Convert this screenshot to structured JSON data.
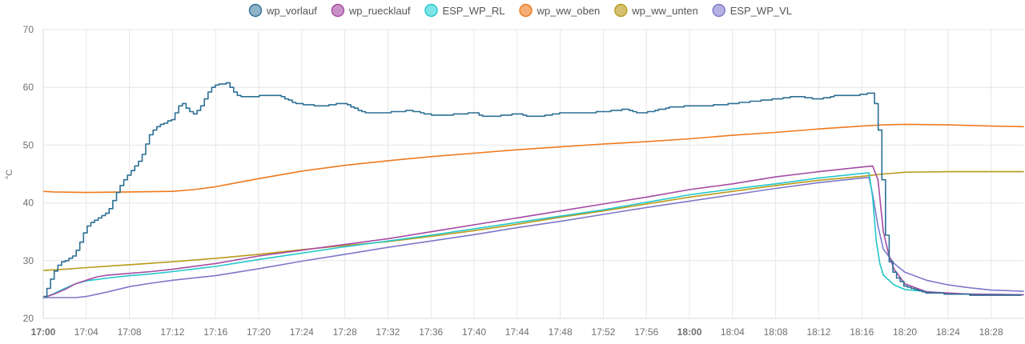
{
  "chart_data": {
    "type": "line",
    "title": "",
    "xlabel": "",
    "ylabel": "°C",
    "ylim": [
      20,
      70
    ],
    "xlim": [
      "17:00",
      "18:31"
    ],
    "grid": true,
    "legend_position": "top-center",
    "yticks": [
      20,
      30,
      40,
      50,
      60,
      70
    ],
    "xticks": [
      {
        "time": "17:00",
        "label": "17:00",
        "bold": true
      },
      {
        "time": "17:04",
        "label": "17:04",
        "bold": false
      },
      {
        "time": "17:08",
        "label": "17:08",
        "bold": false
      },
      {
        "time": "17:12",
        "label": "17:12",
        "bold": false
      },
      {
        "time": "17:16",
        "label": "17:16",
        "bold": false
      },
      {
        "time": "17:20",
        "label": "17:20",
        "bold": false
      },
      {
        "time": "17:24",
        "label": "17:24",
        "bold": false
      },
      {
        "time": "17:28",
        "label": "17:28",
        "bold": false
      },
      {
        "time": "17:32",
        "label": "17:32",
        "bold": false
      },
      {
        "time": "17:36",
        "label": "17:36",
        "bold": false
      },
      {
        "time": "17:40",
        "label": "17:40",
        "bold": false
      },
      {
        "time": "17:44",
        "label": "17:44",
        "bold": false
      },
      {
        "time": "17:48",
        "label": "17:48",
        "bold": false
      },
      {
        "time": "17:52",
        "label": "17:52",
        "bold": false
      },
      {
        "time": "17:56",
        "label": "17:56",
        "bold": false
      },
      {
        "time": "18:00",
        "label": "18:00",
        "bold": true
      },
      {
        "time": "18:04",
        "label": "18:04",
        "bold": false
      },
      {
        "time": "18:08",
        "label": "18:08",
        "bold": false
      },
      {
        "time": "18:12",
        "label": "18:12",
        "bold": false
      },
      {
        "time": "18:16",
        "label": "18:16",
        "bold": false
      },
      {
        "time": "18:20",
        "label": "18:20",
        "bold": false
      },
      {
        "time": "18:24",
        "label": "18:24",
        "bold": false
      },
      {
        "time": "18:28",
        "label": "18:28",
        "bold": false
      }
    ],
    "series": [
      {
        "name": "wp_vorlauf",
        "color": "#2b6f94",
        "fill": "#8fb3c9",
        "step": true,
        "points": [
          [
            "17:00",
            23.8
          ],
          [
            "17:00:30",
            26.0
          ],
          [
            "17:01",
            28.2
          ],
          [
            "17:01:30",
            29.5
          ],
          [
            "17:02",
            30.0
          ],
          [
            "17:02:30",
            30.4
          ],
          [
            "17:03",
            31.5
          ],
          [
            "17:03:30",
            33.6
          ],
          [
            "17:04",
            36.0
          ],
          [
            "17:05",
            37.2
          ],
          [
            "17:06",
            38.5
          ],
          [
            "17:06:30",
            40.5
          ],
          [
            "17:07",
            42.6
          ],
          [
            "17:07:30",
            44.0
          ],
          [
            "17:08",
            45.2
          ],
          [
            "17:09",
            47.5
          ],
          [
            "17:09:30",
            50.2
          ],
          [
            "17:10",
            52.4
          ],
          [
            "17:11",
            53.7
          ],
          [
            "17:12",
            54.5
          ],
          [
            "17:12:30",
            56.8
          ],
          [
            "17:13",
            57.2
          ],
          [
            "17:13:30",
            55.8
          ],
          [
            "17:14",
            55.3
          ],
          [
            "17:14:30",
            56.4
          ],
          [
            "17:15",
            58.2
          ],
          [
            "17:15:30",
            59.8
          ],
          [
            "17:16",
            60.4
          ],
          [
            "17:17",
            60.8
          ],
          [
            "17:17:30",
            59.5
          ],
          [
            "17:18",
            58.6
          ],
          [
            "17:19",
            58.3
          ],
          [
            "17:20",
            58.5
          ],
          [
            "17:21",
            58.6
          ],
          [
            "17:22",
            58.5
          ],
          [
            "17:23",
            57.5
          ],
          [
            "17:24",
            57.0
          ],
          [
            "17:26",
            56.8
          ],
          [
            "17:28",
            57.3
          ],
          [
            "17:29",
            56.2
          ],
          [
            "17:30",
            55.6
          ],
          [
            "17:32",
            55.7
          ],
          [
            "17:34",
            56.0
          ],
          [
            "17:36",
            55.2
          ],
          [
            "17:38",
            55.3
          ],
          [
            "17:40",
            55.6
          ],
          [
            "17:41",
            54.9
          ],
          [
            "17:42",
            55.0
          ],
          [
            "17:44",
            55.5
          ],
          [
            "17:45",
            54.9
          ],
          [
            "17:46",
            55.0
          ],
          [
            "17:48",
            55.6
          ],
          [
            "17:50",
            55.5
          ],
          [
            "17:52",
            55.8
          ],
          [
            "17:54",
            56.2
          ],
          [
            "17:55",
            55.6
          ],
          [
            "17:56",
            55.7
          ],
          [
            "17:58",
            56.5
          ],
          [
            "18:00",
            56.8
          ],
          [
            "18:02",
            56.9
          ],
          [
            "18:04",
            57.2
          ],
          [
            "18:06",
            57.6
          ],
          [
            "18:08",
            58.0
          ],
          [
            "18:10",
            58.5
          ],
          [
            "18:12",
            57.9
          ],
          [
            "18:13",
            58.4
          ],
          [
            "18:14",
            58.7
          ],
          [
            "18:15",
            58.5
          ],
          [
            "18:16",
            58.8
          ],
          [
            "18:17",
            59.1
          ],
          [
            "18:17:15",
            56.5
          ],
          [
            "18:17:30",
            53.0
          ],
          [
            "18:17:45",
            47.0
          ],
          [
            "18:18",
            40.0
          ],
          [
            "18:18:15",
            33.0
          ],
          [
            "18:18:30",
            30.0
          ],
          [
            "18:19",
            27.5
          ],
          [
            "18:20",
            25.5
          ],
          [
            "18:22",
            24.4
          ],
          [
            "18:26",
            24.1
          ],
          [
            "18:31",
            24.0
          ]
        ]
      },
      {
        "name": "wp_ruecklauf",
        "color": "#a54aa3",
        "fill": "#c991c8",
        "step": false,
        "points": [
          [
            "17:00",
            23.6
          ],
          [
            "17:01",
            24.2
          ],
          [
            "17:02",
            25.0
          ],
          [
            "17:03",
            26.0
          ],
          [
            "17:04",
            26.6
          ],
          [
            "17:05",
            27.2
          ],
          [
            "17:06",
            27.5
          ],
          [
            "17:08",
            27.8
          ],
          [
            "17:10",
            28.1
          ],
          [
            "17:12",
            28.5
          ],
          [
            "17:16",
            29.5
          ],
          [
            "17:20",
            30.8
          ],
          [
            "17:24",
            31.8
          ],
          [
            "17:28",
            32.8
          ],
          [
            "17:32",
            33.8
          ],
          [
            "17:36",
            35.0
          ],
          [
            "17:40",
            36.2
          ],
          [
            "17:44",
            37.4
          ],
          [
            "17:48",
            38.6
          ],
          [
            "17:52",
            39.8
          ],
          [
            "17:56",
            41.0
          ],
          [
            "18:00",
            42.3
          ],
          [
            "18:04",
            43.3
          ],
          [
            "18:08",
            44.5
          ],
          [
            "18:12",
            45.4
          ],
          [
            "18:16",
            46.2
          ],
          [
            "18:17",
            46.4
          ],
          [
            "18:17:30",
            44.0
          ],
          [
            "18:18",
            35.0
          ],
          [
            "18:18:30",
            31.0
          ],
          [
            "18:19",
            28.5
          ],
          [
            "18:20",
            26.0
          ],
          [
            "18:22",
            24.6
          ],
          [
            "18:26",
            24.2
          ],
          [
            "18:31",
            24.1
          ]
        ]
      },
      {
        "name": "ESP_WP_RL",
        "color": "#23c7cc",
        "fill": "#7ee4e6",
        "step": false,
        "points": [
          [
            "17:00",
            23.5
          ],
          [
            "17:01",
            24.3
          ],
          [
            "17:02",
            25.2
          ],
          [
            "17:03",
            26.0
          ],
          [
            "17:04",
            26.5
          ],
          [
            "17:06",
            27.0
          ],
          [
            "17:08",
            27.4
          ],
          [
            "17:10",
            27.7
          ],
          [
            "17:12",
            28.1
          ],
          [
            "17:16",
            29.0
          ],
          [
            "17:20",
            30.2
          ],
          [
            "17:24",
            31.3
          ],
          [
            "17:28",
            32.4
          ],
          [
            "17:32",
            33.4
          ],
          [
            "17:36",
            34.4
          ],
          [
            "17:40",
            35.5
          ],
          [
            "17:44",
            36.6
          ],
          [
            "17:48",
            37.7
          ],
          [
            "17:52",
            38.8
          ],
          [
            "17:56",
            40.1
          ],
          [
            "18:00",
            41.4
          ],
          [
            "18:04",
            42.4
          ],
          [
            "18:08",
            43.3
          ],
          [
            "18:12",
            44.3
          ],
          [
            "18:16",
            45.1
          ],
          [
            "18:16:40",
            45.2
          ],
          [
            "18:17",
            41.0
          ],
          [
            "18:17:20",
            33.5
          ],
          [
            "18:17:40",
            29.5
          ],
          [
            "18:18",
            27.5
          ],
          [
            "18:19",
            25.8
          ],
          [
            "18:20",
            25.0
          ],
          [
            "18:24",
            24.3
          ],
          [
            "18:31",
            24.1
          ]
        ]
      },
      {
        "name": "wp_ww_oben",
        "color": "#ef7a1e",
        "fill": "#f5ad77",
        "step": false,
        "points": [
          [
            "17:00",
            42.0
          ],
          [
            "17:01",
            41.9
          ],
          [
            "17:04",
            41.8
          ],
          [
            "17:08",
            41.9
          ],
          [
            "17:12",
            42.0
          ],
          [
            "17:14",
            42.3
          ],
          [
            "17:16",
            42.8
          ],
          [
            "17:18",
            43.5
          ],
          [
            "17:20",
            44.2
          ],
          [
            "17:24",
            45.5
          ],
          [
            "17:28",
            46.5
          ],
          [
            "17:32",
            47.3
          ],
          [
            "17:36",
            48.0
          ],
          [
            "17:40",
            48.6
          ],
          [
            "17:44",
            49.2
          ],
          [
            "17:48",
            49.7
          ],
          [
            "17:52",
            50.2
          ],
          [
            "17:56",
            50.6
          ],
          [
            "18:00",
            51.1
          ],
          [
            "18:04",
            51.7
          ],
          [
            "18:08",
            52.2
          ],
          [
            "18:12",
            52.8
          ],
          [
            "18:16",
            53.3
          ],
          [
            "18:18",
            53.5
          ],
          [
            "18:20",
            53.6
          ],
          [
            "18:24",
            53.5
          ],
          [
            "18:28",
            53.3
          ],
          [
            "18:31",
            53.2
          ]
        ]
      },
      {
        "name": "wp_ww_unten",
        "color": "#b99a1c",
        "fill": "#d6c170",
        "step": false,
        "points": [
          [
            "17:00",
            28.3
          ],
          [
            "17:02",
            28.5
          ],
          [
            "17:04",
            28.8
          ],
          [
            "17:08",
            29.3
          ],
          [
            "17:12",
            29.8
          ],
          [
            "17:16",
            30.4
          ],
          [
            "17:20",
            31.1
          ],
          [
            "17:24",
            31.9
          ],
          [
            "17:28",
            32.6
          ],
          [
            "17:32",
            33.3
          ],
          [
            "17:36",
            34.2
          ],
          [
            "17:40",
            35.2
          ],
          [
            "17:44",
            36.3
          ],
          [
            "17:48",
            37.5
          ],
          [
            "17:52",
            38.6
          ],
          [
            "17:56",
            39.8
          ],
          [
            "18:00",
            41.0
          ],
          [
            "18:04",
            42.0
          ],
          [
            "18:08",
            43.0
          ],
          [
            "18:12",
            43.9
          ],
          [
            "18:16",
            44.6
          ],
          [
            "18:18",
            45.0
          ],
          [
            "18:20",
            45.3
          ],
          [
            "18:24",
            45.4
          ],
          [
            "18:31",
            45.4
          ]
        ]
      },
      {
        "name": "ESP_WP_VL",
        "color": "#7d78c9",
        "fill": "#b4b1e2",
        "step": false,
        "points": [
          [
            "17:00",
            23.6
          ],
          [
            "17:03",
            23.6
          ],
          [
            "17:04",
            23.8
          ],
          [
            "17:06",
            24.6
          ],
          [
            "17:08",
            25.5
          ],
          [
            "17:10",
            26.1
          ],
          [
            "17:12",
            26.6
          ],
          [
            "17:16",
            27.4
          ],
          [
            "17:20",
            28.6
          ],
          [
            "17:24",
            29.9
          ],
          [
            "17:28",
            31.1
          ],
          [
            "17:32",
            32.3
          ],
          [
            "17:36",
            33.4
          ],
          [
            "17:40",
            34.5
          ],
          [
            "17:44",
            35.7
          ],
          [
            "17:48",
            36.8
          ],
          [
            "17:52",
            38.0
          ],
          [
            "17:56",
            39.2
          ],
          [
            "18:00",
            40.3
          ],
          [
            "18:04",
            41.4
          ],
          [
            "18:08",
            42.5
          ],
          [
            "18:12",
            43.5
          ],
          [
            "18:16",
            44.3
          ],
          [
            "18:16:40",
            44.4
          ],
          [
            "18:17",
            41.5
          ],
          [
            "18:17:30",
            36.0
          ],
          [
            "18:18",
            32.0
          ],
          [
            "18:19",
            29.5
          ],
          [
            "18:20",
            28.0
          ],
          [
            "18:22",
            26.6
          ],
          [
            "18:24",
            25.8
          ],
          [
            "18:26",
            25.3
          ],
          [
            "18:28",
            24.9
          ],
          [
            "18:31",
            24.7
          ]
        ]
      }
    ]
  }
}
